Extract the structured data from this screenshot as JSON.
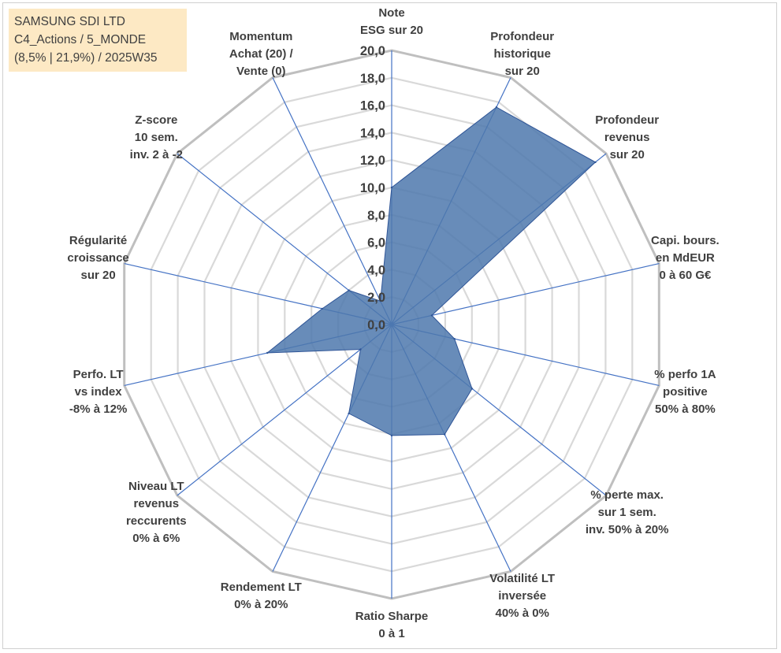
{
  "header": {
    "line1": "SAMSUNG SDI LTD",
    "line2": "C4_Actions / 5_MONDE",
    "line3": "(8,5% | 21,9%) / 2025W35"
  },
  "chart_data": {
    "type": "radar",
    "rmin": 0,
    "rmax": 20,
    "tick_step": 2,
    "ticks": [
      "0,0",
      "2,0",
      "4,0",
      "6,0",
      "8,0",
      "10,0",
      "12,0",
      "14,0",
      "16,0",
      "18,0",
      "20,0"
    ],
    "grid": true,
    "colors": {
      "fill": "#4e78ad",
      "stroke": "#2f5597",
      "spoke": "#4472c4",
      "ring": "#d9d9d9",
      "outer_ring": "#bfbfbf"
    },
    "axes": [
      {
        "label": [
          "Note",
          "ESG sur 20"
        ]
      },
      {
        "label": [
          "Profondeur",
          "historique",
          "sur 20"
        ]
      },
      {
        "label": [
          "Profondeur",
          "revenus",
          "sur 20"
        ]
      },
      {
        "label": [
          "Capi. bours.",
          "en MdEUR",
          "0 à 60 G€"
        ]
      },
      {
        "label": [
          "% perfo 1A",
          "positive",
          "50% à 80%"
        ]
      },
      {
        "label": [
          "% perte max.",
          "sur 1 sem.",
          "inv. 50% à 20%"
        ]
      },
      {
        "label": [
          "Volatilité LT",
          "inversée",
          "40% à 0%"
        ]
      },
      {
        "label": [
          "Ratio Sharpe",
          "0 à 1"
        ]
      },
      {
        "label": [
          "Rendement LT",
          "0% à 20%"
        ]
      },
      {
        "label": [
          "Niveau LT",
          "revenus",
          "reccurents",
          "0% à 6%"
        ]
      },
      {
        "label": [
          "Perfo. LT",
          "vs index",
          "-8% à 12%"
        ]
      },
      {
        "label": [
          "Régularité",
          "croissance",
          "sur 20"
        ]
      },
      {
        "label": [
          "Z-score",
          "10 sem.",
          "inv. 2 à -2"
        ]
      },
      {
        "label": [
          "Momentum",
          "Achat (20) /",
          "Vente (0)"
        ]
      }
    ],
    "series": [
      {
        "values": [
          10.0,
          17.6,
          19.0,
          3.0,
          4.7,
          7.5,
          8.9,
          8.1,
          7.2,
          2.9,
          9.3,
          5.2,
          4.0,
          1.9
        ]
      }
    ]
  }
}
